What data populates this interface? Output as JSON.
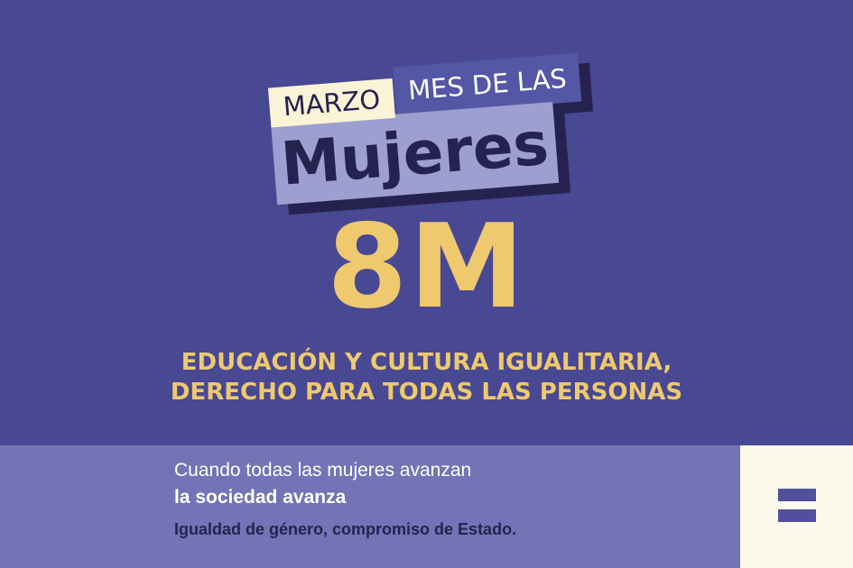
{
  "logo": {
    "marzo": "MARZO",
    "mes_de_las": "MES DE LAS",
    "mujeres": "Mujeres"
  },
  "headline": "8M",
  "tagline": {
    "line1": "EDUCACIÓN Y CULTURA IGUALITARIA,",
    "line2": "DERECHO PARA TODAS LAS PERSONAS"
  },
  "footer": {
    "line1": "Cuando todas las mujeres avanzan",
    "line2": "la sociedad avanza",
    "line3": "Igualdad de género, compromiso de Estado."
  },
  "icons": {
    "emblem": "equals-icon"
  },
  "colors": {
    "background": "#484893",
    "gold": "#eec96e",
    "band": "#7374b5",
    "cream": "#fcf8ea",
    "navy": "#25224f"
  }
}
